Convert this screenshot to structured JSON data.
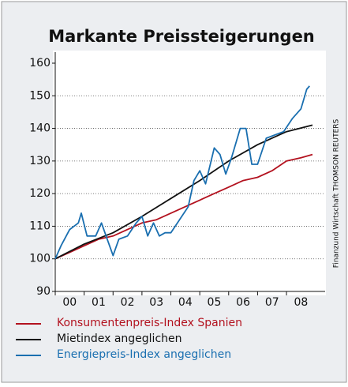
{
  "chart_data": {
    "type": "line",
    "title": "Markante Preissteigerungen",
    "source": "Finanzund Wirtschaft THOMSON REUTERS",
    "xlim": [
      2000,
      2009.2
    ],
    "xticks": [
      {
        "value": 2000,
        "label": "00"
      },
      {
        "value": 2001,
        "label": "01"
      },
      {
        "value": 2002,
        "label": "02"
      },
      {
        "value": 2003,
        "label": "03"
      },
      {
        "value": 2004,
        "label": "04"
      },
      {
        "value": 2005,
        "label": "05"
      },
      {
        "value": 2006,
        "label": "06"
      },
      {
        "value": 2007,
        "label": "07"
      },
      {
        "value": 2008,
        "label": "08"
      }
    ],
    "ylim": [
      90,
      160
    ],
    "yticks": [
      90,
      100,
      110,
      120,
      130,
      140,
      150,
      160
    ],
    "grid": true,
    "series": [
      {
        "name": "Konsumentenpreis-Index Spanien",
        "color": "#b3121f",
        "x": [
          2000,
          2000.5,
          2001,
          2001.5,
          2002,
          2002.5,
          2003,
          2003.5,
          2004,
          2004.5,
          2005,
          2005.5,
          2006,
          2006.5,
          2007,
          2007.5,
          2008,
          2008.5,
          2008.9
        ],
        "values": [
          100,
          102,
          104,
          106,
          107,
          109,
          111,
          112,
          114,
          116,
          118,
          120,
          122,
          124,
          125,
          127,
          130,
          131,
          132
        ]
      },
      {
        "name": "Mietindex angeglichen",
        "color": "#111111",
        "x": [
          2000,
          2001,
          2002,
          2003,
          2004,
          2005,
          2006,
          2007,
          2008,
          2008.9
        ],
        "values": [
          100,
          104.5,
          108,
          113,
          118.5,
          124,
          130,
          135,
          139,
          141
        ]
      },
      {
        "name": "Energiepreis-Index angeglichen",
        "color": "#1a6fb0",
        "x": [
          2000,
          2000.2,
          2000.5,
          2000.8,
          2000.9,
          2001.1,
          2001.4,
          2001.6,
          2001.8,
          2002.0,
          2002.2,
          2002.5,
          2002.8,
          2003.0,
          2003.2,
          2003.4,
          2003.6,
          2003.8,
          2004.0,
          2004.3,
          2004.6,
          2004.8,
          2005.0,
          2005.2,
          2005.5,
          2005.7,
          2005.9,
          2006.1,
          2006.4,
          2006.6,
          2006.8,
          2007.0,
          2007.3,
          2007.6,
          2007.9,
          2008.2,
          2008.5,
          2008.7,
          2008.8
        ],
        "values": [
          100,
          104,
          109,
          111,
          114,
          107,
          107,
          111,
          106,
          101,
          106,
          107,
          111,
          113,
          107,
          111,
          107,
          108,
          108,
          112,
          116,
          124,
          127,
          123,
          134,
          132,
          126,
          131,
          140,
          140,
          129,
          129,
          137,
          138,
          139,
          143,
          146,
          152,
          153
        ]
      }
    ]
  }
}
